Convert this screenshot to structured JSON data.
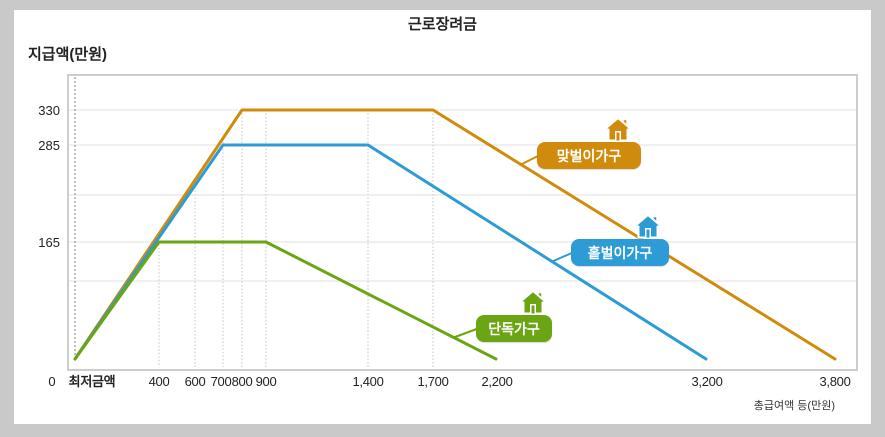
{
  "chart_data": {
    "type": "line",
    "title": "근로장려금",
    "ylabel": "지급액(만원)",
    "xlabel": "총급여액 등(만원)",
    "origin_label": "0",
    "y_ticks": [
      330,
      285,
      165
    ],
    "ylim": [
      0,
      330
    ],
    "x_ticks": [
      "최저금액",
      "400",
      "600",
      "700",
      "800",
      "900",
      "1,400",
      "1,700",
      "2,200",
      "3,200",
      "3,800"
    ],
    "grid": true,
    "legend": "inline",
    "legend_icon": "house-icon",
    "series": [
      {
        "name": "맞벌이가구",
        "color": "#d18b0c",
        "x": [
          "최저금액",
          800,
          1700,
          3800
        ],
        "y": [
          0,
          330,
          330,
          0
        ]
      },
      {
        "name": "홑벌이가구",
        "color": "#2c9bd6",
        "x": [
          "최저금액",
          700,
          1400,
          3200
        ],
        "y": [
          0,
          285,
          285,
          0
        ]
      },
      {
        "name": "단독가구",
        "color": "#6ca514",
        "x": [
          "최저금액",
          400,
          900,
          2200
        ],
        "y": [
          0,
          165,
          165,
          0
        ]
      }
    ]
  },
  "colors": {
    "frame": "#c9c9c9",
    "panel": "#ffffff",
    "grid": "#e0e0e0",
    "dotted": "#c4c4c4",
    "axis_box": "#cdcdcd",
    "start_line": "#808080"
  }
}
